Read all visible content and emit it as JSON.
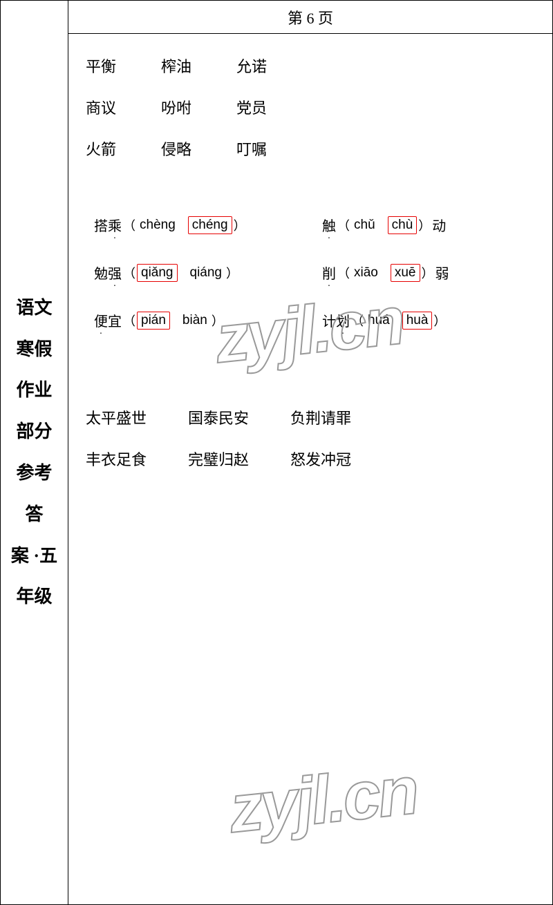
{
  "sidebar": {
    "lines": [
      "语文",
      "寒假",
      "作业",
      "部分",
      "参考",
      "答",
      "案 ·五",
      "年级"
    ]
  },
  "header": {
    "title": "第 6 页"
  },
  "wordGrid": {
    "rows": [
      [
        "平衡",
        "榨油",
        "允诺"
      ],
      [
        "商议",
        "吩咐",
        "党员"
      ],
      [
        "火箭",
        "侵略",
        "叮嘱"
      ]
    ]
  },
  "pinyin": {
    "rows": [
      {
        "left": {
          "chars": "搭乘",
          "dotIndex": 1,
          "opt1": "chèng",
          "opt2": "chéng",
          "boxed": 2
        },
        "right": {
          "chars": "触",
          "dotIndex": 0,
          "opt1": "chǔ",
          "opt2": "chù",
          "suffix": "动",
          "boxed": 2
        }
      },
      {
        "left": {
          "chars": "勉强",
          "dotIndex": 1,
          "opt1": "qiǎng",
          "opt2": "qiáng",
          "boxed": 1
        },
        "right": {
          "chars": "削",
          "dotIndex": 0,
          "opt1": "xiāo",
          "opt2": "xuē",
          "suffix": "弱",
          "boxed": 2
        }
      },
      {
        "left": {
          "chars": "便宜",
          "dotIndex": 0,
          "opt1": "pián",
          "opt2": "biàn",
          "boxed": 1
        },
        "right": {
          "chars": "计划",
          "dotIndex": 1,
          "opt1": "huá",
          "opt2": "huà",
          "boxed": 2
        }
      }
    ]
  },
  "idioms": {
    "rows": [
      [
        "太平盛世",
        "国泰民安",
        "负荆请罪"
      ],
      [
        "丰衣足食",
        "完璧归赵",
        "怒发冲冠"
      ]
    ]
  },
  "watermark": "zyjl.cn",
  "colors": {
    "border": "#000000",
    "highlight_border": "#e60000",
    "watermark_stroke": "#999999",
    "background": "#ffffff"
  }
}
